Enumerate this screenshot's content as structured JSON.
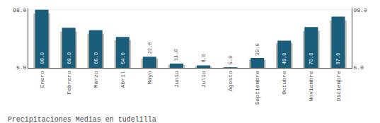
{
  "chart_data": {
    "type": "bar",
    "title": "Precipitaciones Medias en tudelilla",
    "categories": [
      "Enero",
      "Febrero",
      "Marzo",
      "Abril",
      "Mayo",
      "Junio",
      "Julio",
      "Agosto",
      "Septiembre",
      "Octubre",
      "Noviembre",
      "Diciembre"
    ],
    "series": [
      {
        "color": "#c5bdb0",
        "values": [
          92.0,
          63.0,
          59.0,
          49.0,
          19.0,
          9.0,
          6.5,
          4.5,
          17.0,
          44.0,
          64.0,
          81.0
        ]
      },
      {
        "color": "#1b5e7b",
        "values": [
          98.0,
          69.0,
          65.0,
          54.0,
          22.0,
          11.0,
          8.0,
          5.0,
          20.0,
          48.0,
          70.0,
          87.0
        ],
        "value_labels": [
          "98.0",
          "69.0",
          "65.0",
          "54.0",
          "22.0",
          "11.0",
          "8.0",
          "5.0",
          "20.0",
          "48.0",
          "70.0",
          "87.0"
        ],
        "data_labels": true
      }
    ],
    "ylim": [
      4,
      100
    ],
    "yticks": [
      {
        "value": 5,
        "label": "5.0"
      },
      {
        "value": 98,
        "label": "98.0"
      }
    ],
    "y2lim": [
      4,
      100
    ],
    "y2ticks": [
      {
        "value": 5,
        "label": "5.0"
      },
      {
        "value": 98,
        "label": "98.0"
      }
    ],
    "grid": true
  }
}
